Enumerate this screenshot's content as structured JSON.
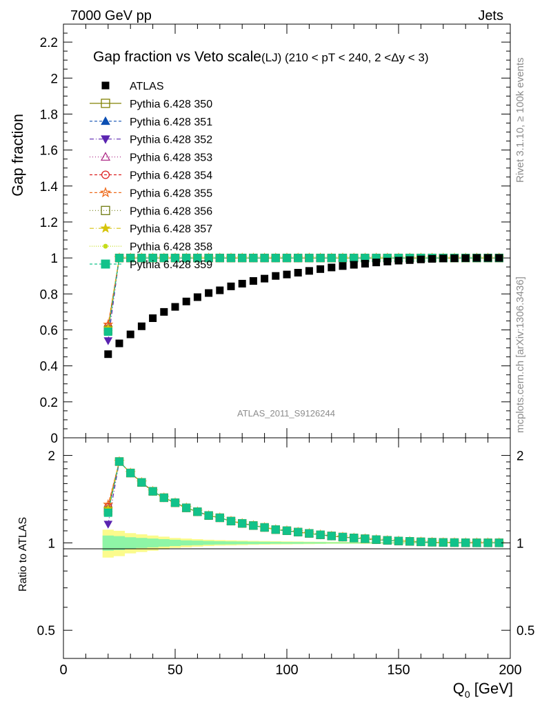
{
  "header": {
    "left": "7000 GeV pp",
    "right": "Jets",
    "side_rivet": "Rivet 3.1.10, ≥ 100k events",
    "side_mcplots": "mcplots.cern.ch [arXiv:1306.3436]",
    "analysis": "ATLAS_2011_S9126244"
  },
  "chart_data": [
    {
      "type": "scatter",
      "title": "Gap fraction vs Veto scale",
      "subtitle": "(LJ) (210 < pT < 240, 2 <Δy < 3)",
      "ylabel": "Gap fraction",
      "xlabel": "",
      "xlim": [
        0,
        200
      ],
      "ylim": [
        0,
        2.3
      ],
      "y_ticks": [
        "0",
        "0.2",
        "0.4",
        "0.6",
        "0.8",
        "1",
        "1.2",
        "1.4",
        "1.6",
        "1.8",
        "2",
        "2.2"
      ],
      "x": [
        20,
        25,
        30,
        35,
        40,
        45,
        50,
        55,
        60,
        65,
        70,
        75,
        80,
        85,
        90,
        95,
        100,
        105,
        110,
        115,
        120,
        125,
        130,
        135,
        140,
        145,
        150,
        155,
        160,
        165,
        170,
        175,
        180,
        185,
        190,
        195
      ],
      "series": [
        {
          "name": "ATLAS",
          "color": "#000000",
          "marker": "square",
          "values": [
            0.465,
            0.525,
            0.575,
            0.62,
            0.665,
            0.7,
            0.728,
            0.758,
            0.782,
            0.805,
            0.82,
            0.842,
            0.857,
            0.872,
            0.885,
            0.9,
            0.908,
            0.918,
            0.928,
            0.938,
            0.947,
            0.955,
            0.962,
            0.968,
            0.975,
            0.98,
            0.985,
            0.988,
            0.992,
            0.995,
            0.997,
            0.998,
            0.999,
            1.0,
            1.0,
            1.0
          ]
        },
        {
          "name": "Pythia 6.428 350",
          "color": "#808000",
          "marker": "open-square",
          "dash": "",
          "first": 0.595
        },
        {
          "name": "Pythia 6.428 351",
          "color": "#0b4fb3",
          "marker": "triangle-up",
          "dash": "4,3",
          "first": 0.6
        },
        {
          "name": "Pythia 6.428 352",
          "color": "#5a24b0",
          "marker": "triangle-down",
          "dash": "6,3,1,3",
          "first": 0.54
        },
        {
          "name": "Pythia 6.428 353",
          "color": "#b0308a",
          "marker": "open-triangle",
          "dash": "1,3",
          "first": 0.615
        },
        {
          "name": "Pythia 6.428 354",
          "color": "#dc1c1c",
          "marker": "open-circle",
          "dash": "4,3",
          "first": 0.62
        },
        {
          "name": "Pythia 6.428 355",
          "color": "#ee6a1a",
          "marker": "open-star",
          "dash": "4,3",
          "first": 0.63
        },
        {
          "name": "Pythia 6.428 356",
          "color": "#6d7a0f",
          "marker": "open-square",
          "dash": "1,3",
          "first": 0.6
        },
        {
          "name": "Pythia 6.428 357",
          "color": "#d6c40a",
          "marker": "star",
          "dash": "6,3,1,3",
          "first": 0.61
        },
        {
          "name": "Pythia 6.428 358",
          "color": "#c4dc1a",
          "marker": "dot",
          "dash": "1,2",
          "first": 0.6
        },
        {
          "name": "Pythia 6.428 359",
          "color": "#12c28a",
          "marker": "square",
          "dash": "4,3",
          "first": 0.59
        }
      ],
      "mc_value_after_first": 1.0
    },
    {
      "type": "scatter",
      "ylabel": "Ratio to ATLAS",
      "xlabel": "Q",
      "xlabel_sub": "0",
      "xlabel_unit": " [GeV]",
      "xlim": [
        0,
        200
      ],
      "ylim": [
        0.4,
        2.3
      ],
      "log_y": true,
      "y_ticks": [
        "0.5",
        "1",
        "2"
      ],
      "x_ticks": [
        "0",
        "50",
        "100",
        "150",
        "200"
      ],
      "x": [
        20,
        25,
        30,
        35,
        40,
        45,
        50,
        55,
        60,
        65,
        70,
        75,
        80,
        85,
        90,
        95,
        100,
        105,
        110,
        115,
        120,
        125,
        130,
        135,
        140,
        145,
        150,
        155,
        160,
        165,
        170,
        175,
        180,
        185,
        190,
        195
      ],
      "ratio": [
        1.28,
        1.905,
        1.74,
        1.615,
        1.505,
        1.43,
        1.375,
        1.32,
        1.28,
        1.242,
        1.22,
        1.188,
        1.167,
        1.147,
        1.13,
        1.111,
        1.101,
        1.089,
        1.078,
        1.066,
        1.056,
        1.047,
        1.04,
        1.033,
        1.026,
        1.02,
        1.015,
        1.012,
        1.008,
        1.005,
        1.003,
        1.002,
        1.001,
        1.0,
        1.0,
        1.0
      ],
      "first_ratios": [
        1.28,
        1.29,
        1.16,
        1.32,
        1.33,
        1.355,
        1.29,
        1.31,
        1.29,
        1.27
      ],
      "band_outer": [
        0.11,
        0.1,
        0.08,
        0.07,
        0.06,
        0.05,
        0.04,
        0.035,
        0.03,
        0.025,
        0.022,
        0.02,
        0.018,
        0.016,
        0.014,
        0.013,
        0.012,
        0.011,
        0.01,
        0.009,
        0.008,
        0.008,
        0.007,
        0.007,
        0.006,
        0.006,
        0.006,
        0.005,
        0.005,
        0.005,
        0.005,
        0.005,
        0.005,
        0.005,
        0.005,
        0.005
      ],
      "band_inner": [
        0.06,
        0.055,
        0.045,
        0.04,
        0.035,
        0.03,
        0.025,
        0.02,
        0.018,
        0.015,
        0.013,
        0.012,
        0.011,
        0.01,
        0.009,
        0.008,
        0.007,
        0.007,
        0.006,
        0.006,
        0.005,
        0.005,
        0.005,
        0.004,
        0.004,
        0.004,
        0.004,
        0.003,
        0.003,
        0.003,
        0.003,
        0.003,
        0.003,
        0.003,
        0.003,
        0.003
      ],
      "band_colors": {
        "outer": "#fbfb8c",
        "inner": "#8ef5a6"
      }
    }
  ]
}
